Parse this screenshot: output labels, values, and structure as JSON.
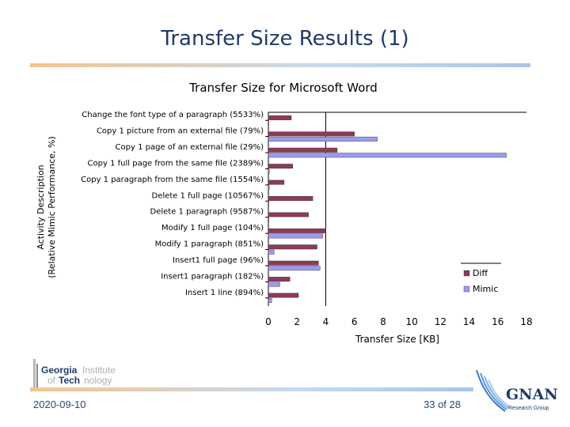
{
  "slide": {
    "title": "Transfer Size Results (1)",
    "date": "2020-09-10",
    "page": "33 of 28"
  },
  "logos": {
    "left": {
      "line1a": "Georgia",
      "line1b": "Institute",
      "line2a": "of",
      "line2b": "Tech",
      "line2c": "nology"
    },
    "right": {
      "name": "GNAN",
      "subtitle": "Research Group"
    }
  },
  "colors": {
    "diff": "#8b3a5a",
    "mimic": "#9b9bf0",
    "title": "#1f3a68"
  },
  "chart_data": {
    "type": "bar",
    "orientation": "horizontal",
    "title": "Transfer Size for Microsoft Word",
    "xlabel": "Transfer Size [KB]",
    "ylabel_line1": "Activity Description",
    "ylabel_line2": "(Relative Mimic Performance, %)",
    "xlim": [
      0,
      18
    ],
    "xticks": [
      "0",
      "2",
      "4",
      "6",
      "8",
      "10",
      "12",
      "14",
      "16",
      "18"
    ],
    "grid": false,
    "legend_placement": "right",
    "categories": [
      "Change the font type of a paragraph (5533%)",
      "Copy 1 picture from an external file (79%)",
      "Copy 1 page of an external file (29%)",
      "Copy 1 full page from the same file (2389%)",
      "Copy 1 paragraph from the same file (1554%)",
      "Delete 1 full page (10567%)",
      "Delete 1 paragraph (9587%)",
      "Modify 1 full page (104%)",
      "Modify 1 paragraph (851%)",
      "Insert1 full page (96%)",
      "Insert1 paragraph (182%)",
      "Insert 1 line (894%)"
    ],
    "series": [
      {
        "name": "Diff",
        "values": [
          1.6,
          6.0,
          4.8,
          1.7,
          1.1,
          3.1,
          2.8,
          4.0,
          3.4,
          3.5,
          1.5,
          2.1
        ]
      },
      {
        "name": "Mimic",
        "values": [
          0.03,
          7.6,
          16.6,
          0.07,
          0.07,
          0.03,
          0.03,
          3.8,
          0.4,
          3.6,
          0.8,
          0.24
        ]
      }
    ]
  }
}
